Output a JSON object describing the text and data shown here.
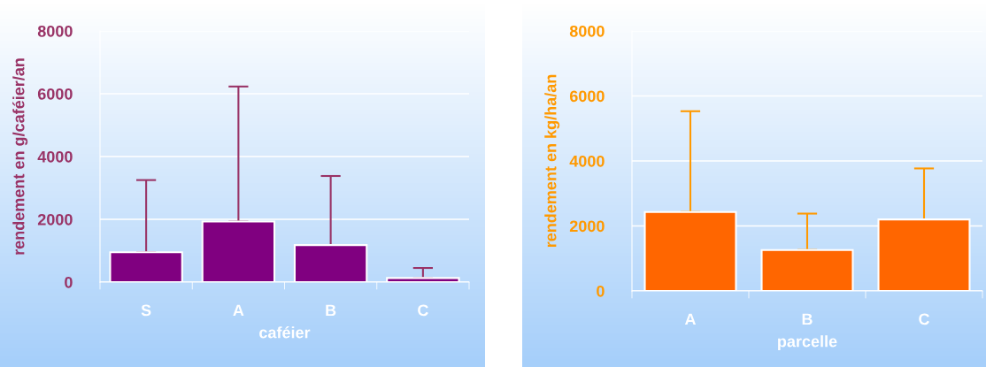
{
  "chart_data": [
    {
      "type": "bar",
      "xlabel": "caféier",
      "ylabel": "rendement en g/caféier/an",
      "categories": [
        "S",
        "A",
        "B",
        "C"
      ],
      "series": [
        {
          "color": "#800080",
          "values": [
            950,
            1930,
            1180,
            130
          ],
          "errors": [
            [
              950,
              3250
            ],
            [
              1930,
              6230
            ],
            [
              1180,
              3380
            ],
            [
              130,
              450
            ]
          ]
        }
      ],
      "ylim": [
        0,
        8000
      ],
      "yticks": [
        0,
        2000,
        4000,
        6000,
        8000
      ],
      "grid": "y"
    },
    {
      "type": "bar",
      "xlabel": "parcelle",
      "ylabel": "rendement en kg/ha/an",
      "categories": [
        "A",
        "B",
        "C"
      ],
      "series": [
        {
          "color": "#ff6600",
          "values": [
            2430,
            1260,
            2200
          ],
          "errors": [
            [
              2430,
              5530
            ],
            [
              1260,
              2380
            ],
            [
              2200,
              3770
            ]
          ]
        }
      ],
      "ylim": [
        0,
        8000
      ],
      "yticks": [
        0,
        2000,
        4000,
        6000,
        8000
      ],
      "grid": "y"
    }
  ]
}
